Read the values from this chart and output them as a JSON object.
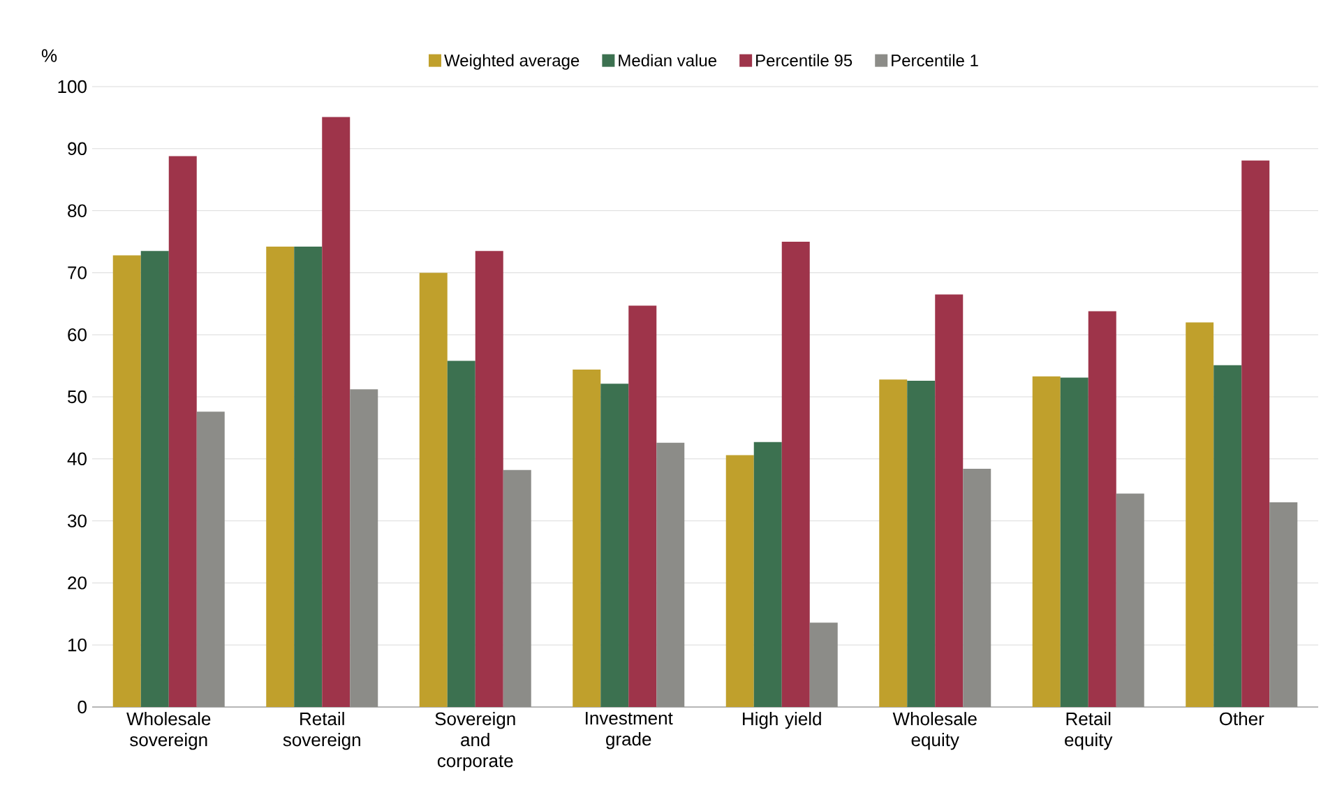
{
  "chart_data": {
    "type": "bar",
    "ylabel": "%",
    "categories": [
      "Wholesale sovereign",
      "Retail sovereign",
      "Sovereign and corporate",
      "Investment grade",
      "High yield",
      "Wholesale equity",
      "Retail equity",
      "Other"
    ],
    "series": [
      {
        "name": "Weighted average",
        "color": "#c0a02c",
        "values": [
          72.8,
          74.2,
          70.0,
          54.4,
          40.6,
          52.8,
          53.3,
          62.0
        ]
      },
      {
        "name": "Median value",
        "color": "#3c7150",
        "values": [
          73.5,
          74.2,
          55.8,
          52.1,
          42.7,
          52.6,
          53.1,
          55.1
        ]
      },
      {
        "name": "Percentile 95",
        "color": "#9e344a",
        "values": [
          88.8,
          95.1,
          73.5,
          64.7,
          75.0,
          66.5,
          63.8,
          88.1
        ]
      },
      {
        "name": "Percentile 1",
        "color": "#8c8c88",
        "values": [
          47.6,
          51.2,
          38.2,
          42.6,
          13.6,
          38.4,
          34.4,
          33.0
        ]
      }
    ],
    "ylim": [
      0,
      100
    ],
    "yticks": [
      0,
      10,
      20,
      30,
      40,
      50,
      60,
      70,
      80,
      90,
      100
    ],
    "grid": "y",
    "legend": "top"
  }
}
